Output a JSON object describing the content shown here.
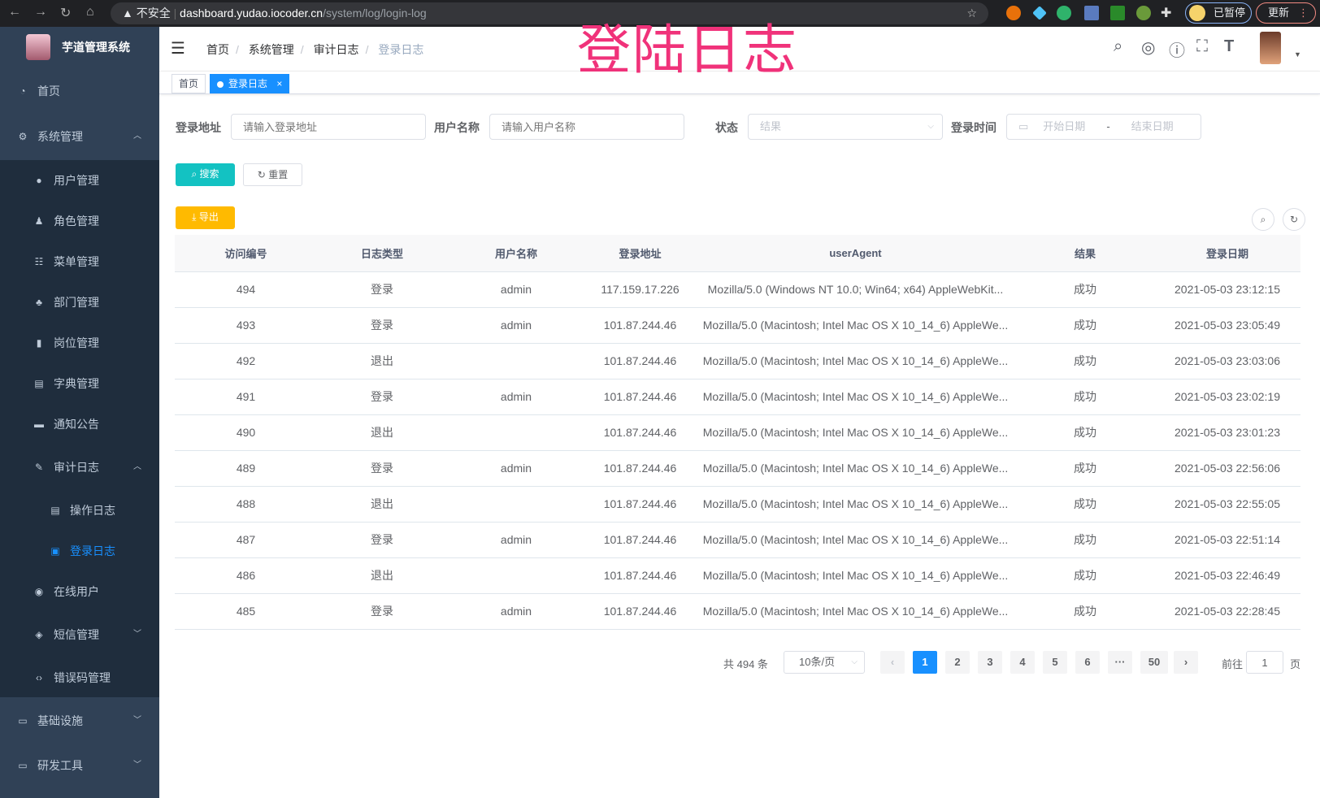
{
  "browser": {
    "security": "不安全",
    "url_host": "dashboard.yudao.iocoder.cn",
    "url_path": "/system/log/login-log",
    "paused": "已暂停",
    "update": "更新"
  },
  "overlay_title": "登陆日志",
  "app": {
    "title": "芋道管理系统"
  },
  "sidebar": {
    "items": [
      {
        "label": "首页",
        "icon": "dashboard-icon"
      },
      {
        "label": "系统管理",
        "icon": "gear-icon",
        "expanded": true
      },
      {
        "label": "用户管理",
        "icon": "user-icon"
      },
      {
        "label": "角色管理",
        "icon": "peoples-icon"
      },
      {
        "label": "菜单管理",
        "icon": "tree-table-icon"
      },
      {
        "label": "部门管理",
        "icon": "tree-icon"
      },
      {
        "label": "岗位管理",
        "icon": "post-icon"
      },
      {
        "label": "字典管理",
        "icon": "dict-icon"
      },
      {
        "label": "通知公告",
        "icon": "message-icon"
      },
      {
        "label": "审计日志",
        "icon": "log-icon",
        "expanded": true
      },
      {
        "label": "操作日志",
        "icon": "form-icon"
      },
      {
        "label": "登录日志",
        "icon": "logininfor-icon",
        "active": true
      },
      {
        "label": "在线用户",
        "icon": "online-icon"
      },
      {
        "label": "短信管理",
        "icon": "validcode-icon"
      },
      {
        "label": "错误码管理",
        "icon": "code-icon"
      },
      {
        "label": "基础设施",
        "icon": "monitor-icon"
      },
      {
        "label": "研发工具",
        "icon": "tool-icon"
      }
    ]
  },
  "breadcrumb": [
    "首页",
    "系统管理",
    "审计日志",
    "登录日志"
  ],
  "tags": [
    "首页",
    "登录日志"
  ],
  "filters": {
    "address": {
      "label": "登录地址",
      "placeholder": "请输入登录地址"
    },
    "username": {
      "label": "用户名称",
      "placeholder": "请输入用户名称"
    },
    "status": {
      "label": "状态",
      "placeholder": "结果"
    },
    "time": {
      "label": "登录时间",
      "start": "开始日期",
      "sep": "-",
      "end": "结束日期"
    }
  },
  "buttons": {
    "search": "搜索",
    "reset": "重置",
    "export": "导出"
  },
  "table": {
    "columns": [
      "访问编号",
      "日志类型",
      "用户名称",
      "登录地址",
      "userAgent",
      "结果",
      "登录日期"
    ],
    "rows": [
      [
        "494",
        "登录",
        "admin",
        "117.159.17.226",
        "Mozilla/5.0 (Windows NT 10.0; Win64; x64) AppleWebKit...",
        "成功",
        "2021-05-03 23:12:15"
      ],
      [
        "493",
        "登录",
        "admin",
        "101.87.244.46",
        "Mozilla/5.0 (Macintosh; Intel Mac OS X 10_14_6) AppleWe...",
        "成功",
        "2021-05-03 23:05:49"
      ],
      [
        "492",
        "退出",
        "",
        "101.87.244.46",
        "Mozilla/5.0 (Macintosh; Intel Mac OS X 10_14_6) AppleWe...",
        "成功",
        "2021-05-03 23:03:06"
      ],
      [
        "491",
        "登录",
        "admin",
        "101.87.244.46",
        "Mozilla/5.0 (Macintosh; Intel Mac OS X 10_14_6) AppleWe...",
        "成功",
        "2021-05-03 23:02:19"
      ],
      [
        "490",
        "退出",
        "",
        "101.87.244.46",
        "Mozilla/5.0 (Macintosh; Intel Mac OS X 10_14_6) AppleWe...",
        "成功",
        "2021-05-03 23:01:23"
      ],
      [
        "489",
        "登录",
        "admin",
        "101.87.244.46",
        "Mozilla/5.0 (Macintosh; Intel Mac OS X 10_14_6) AppleWe...",
        "成功",
        "2021-05-03 22:56:06"
      ],
      [
        "488",
        "退出",
        "",
        "101.87.244.46",
        "Mozilla/5.0 (Macintosh; Intel Mac OS X 10_14_6) AppleWe...",
        "成功",
        "2021-05-03 22:55:05"
      ],
      [
        "487",
        "登录",
        "admin",
        "101.87.244.46",
        "Mozilla/5.0 (Macintosh; Intel Mac OS X 10_14_6) AppleWe...",
        "成功",
        "2021-05-03 22:51:14"
      ],
      [
        "486",
        "退出",
        "",
        "101.87.244.46",
        "Mozilla/5.0 (Macintosh; Intel Mac OS X 10_14_6) AppleWe...",
        "成功",
        "2021-05-03 22:46:49"
      ],
      [
        "485",
        "登录",
        "admin",
        "101.87.244.46",
        "Mozilla/5.0 (Macintosh; Intel Mac OS X 10_14_6) AppleWe...",
        "成功",
        "2021-05-03 22:28:45"
      ]
    ]
  },
  "pagination": {
    "total": "共 494 条",
    "page_size": "10条/页",
    "pages": [
      "1",
      "2",
      "3",
      "4",
      "5",
      "6",
      "···",
      "50"
    ],
    "current": "1",
    "goto_prefix": "前往",
    "goto_value": "1",
    "goto_suffix": "页"
  },
  "colors": {
    "sidebar": "#304156",
    "submenu": "#1f2d3d",
    "primary": "#1890ff",
    "search": "#13c2c2",
    "export": "#ffba00",
    "overlay": "#f0327a"
  }
}
